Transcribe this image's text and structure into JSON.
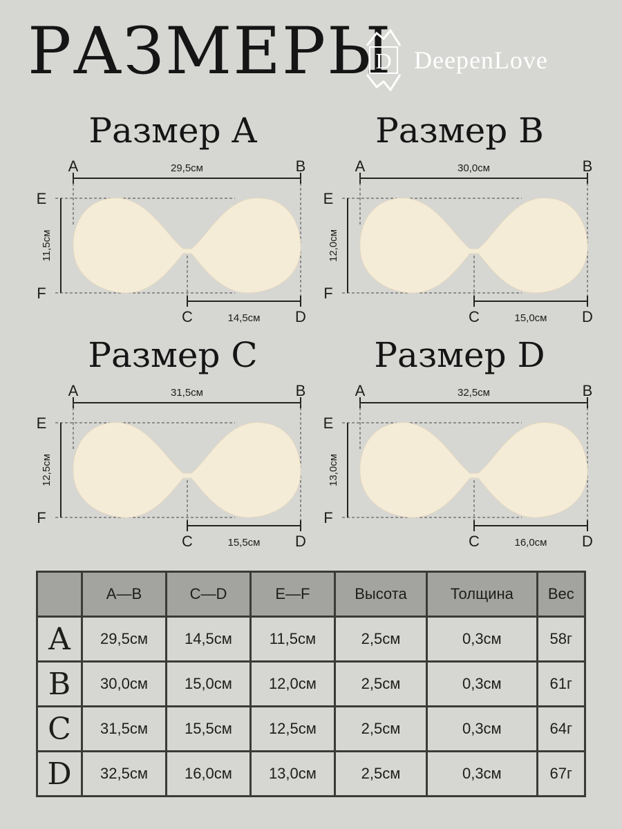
{
  "title": "РАЗМЕРЫ",
  "brand": {
    "name": "DeepenLove",
    "logo_letter": "D"
  },
  "panels": [
    {
      "title": "Размер A",
      "ab": "29,5см",
      "cd": "14,5см",
      "ef": "11,5см"
    },
    {
      "title": "Размер B",
      "ab": "30,0см",
      "cd": "15,0см",
      "ef": "12,0см"
    },
    {
      "title": "Размер C",
      "ab": "31,5см",
      "cd": "15,5см",
      "ef": "12,5см"
    },
    {
      "title": "Размер D",
      "ab": "32,5см",
      "cd": "16,0см",
      "ef": "13,0см"
    }
  ],
  "point_labels": {
    "a": "A",
    "b": "B",
    "c": "C",
    "d": "D",
    "e": "E",
    "f": "F"
  },
  "table": {
    "headers": [
      "A—B",
      "C—D",
      "E—F",
      "Высота",
      "Толщина",
      "Вес"
    ],
    "rows": [
      {
        "size": "A",
        "cells": [
          "29,5см",
          "14,5см",
          "11,5см",
          "2,5см",
          "0,3см",
          "58г"
        ]
      },
      {
        "size": "B",
        "cells": [
          "30,0см",
          "15,0см",
          "12,0см",
          "2,5см",
          "0,3см",
          "61г"
        ]
      },
      {
        "size": "C",
        "cells": [
          "31,5см",
          "15,5см",
          "12,5см",
          "2,5см",
          "0,3см",
          "64г"
        ]
      },
      {
        "size": "D",
        "cells": [
          "32,5см",
          "16,0см",
          "13,0см",
          "2,5см",
          "0,3см",
          "67г"
        ]
      }
    ]
  },
  "colors": {
    "background": "#d6d6d3",
    "cup": "#f5ecd8",
    "header_fill": "#a3a3a0",
    "brand_text": "#ffffff"
  }
}
